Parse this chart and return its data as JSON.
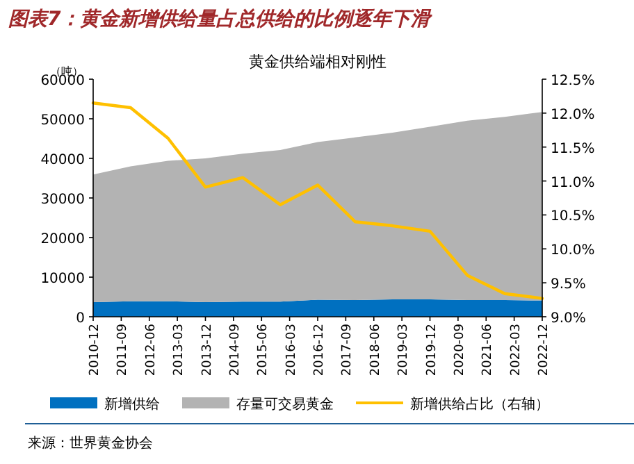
{
  "chart_data": {
    "type": "area",
    "title": "图表7：黄金新增供给量占总供给的比例逐年下滑",
    "subtitle": "黄金供给端相对刚性",
    "ylabel": "（吨）",
    "stacked": true,
    "grid": false,
    "legend": "bottom",
    "x": [
      "2010-12",
      "2011-12",
      "2012-12",
      "2013-12",
      "2014-12",
      "2015-12",
      "2016-12",
      "2017-12",
      "2018-12",
      "2019-12",
      "2020-12",
      "2021-12",
      "2022-12"
    ],
    "xlim": [
      "2010-12",
      "2022-12"
    ],
    "xticks": [
      "2010-12",
      "2011-09",
      "2012-06",
      "2013-03",
      "2013-12",
      "2014-09",
      "2015-06",
      "2016-03",
      "2016-12",
      "2017-09",
      "2018-06",
      "2019-03",
      "2019-12",
      "2020-09",
      "2021-06",
      "2022-03",
      "2022-12"
    ],
    "ylim": [
      0,
      60000
    ],
    "yticks": [
      0,
      10000,
      20000,
      30000,
      40000,
      50000,
      60000
    ],
    "y2lim": [
      9.0,
      12.5
    ],
    "y2ticks": [
      {
        "value": 9.0,
        "label": "9.0%"
      },
      {
        "value": 9.5,
        "label": "9.5%"
      },
      {
        "value": 10.0,
        "label": "10.0%"
      },
      {
        "value": 10.5,
        "label": "10.5%"
      },
      {
        "value": 11.0,
        "label": "11.0%"
      },
      {
        "value": 11.5,
        "label": "11.5%"
      },
      {
        "value": 12.0,
        "label": "12.0%"
      },
      {
        "value": 12.5,
        "label": "12.5%"
      }
    ],
    "series": [
      {
        "name": "新增供给",
        "color": "#0070c0",
        "values": [
          3700,
          3900,
          3900,
          3700,
          3800,
          3800,
          4300,
          4200,
          4400,
          4400,
          4200,
          4200,
          4100
        ]
      },
      {
        "name": "存量可交易黄金",
        "color": "#b3b3b3",
        "values": [
          32200,
          34100,
          35500,
          36300,
          37400,
          38300,
          39800,
          41100,
          42100,
          43600,
          45300,
          46300,
          47600
        ]
      },
      {
        "name": "新增供给占比（右轴）",
        "type": "line",
        "axis": "y2",
        "color": "#ffc000",
        "values": [
          12.15,
          12.08,
          11.63,
          10.91,
          11.05,
          10.65,
          10.94,
          10.4,
          10.34,
          10.26,
          9.61,
          9.34,
          9.27
        ]
      }
    ],
    "annotations": [
      "来源：世界黄金协会"
    ]
  }
}
